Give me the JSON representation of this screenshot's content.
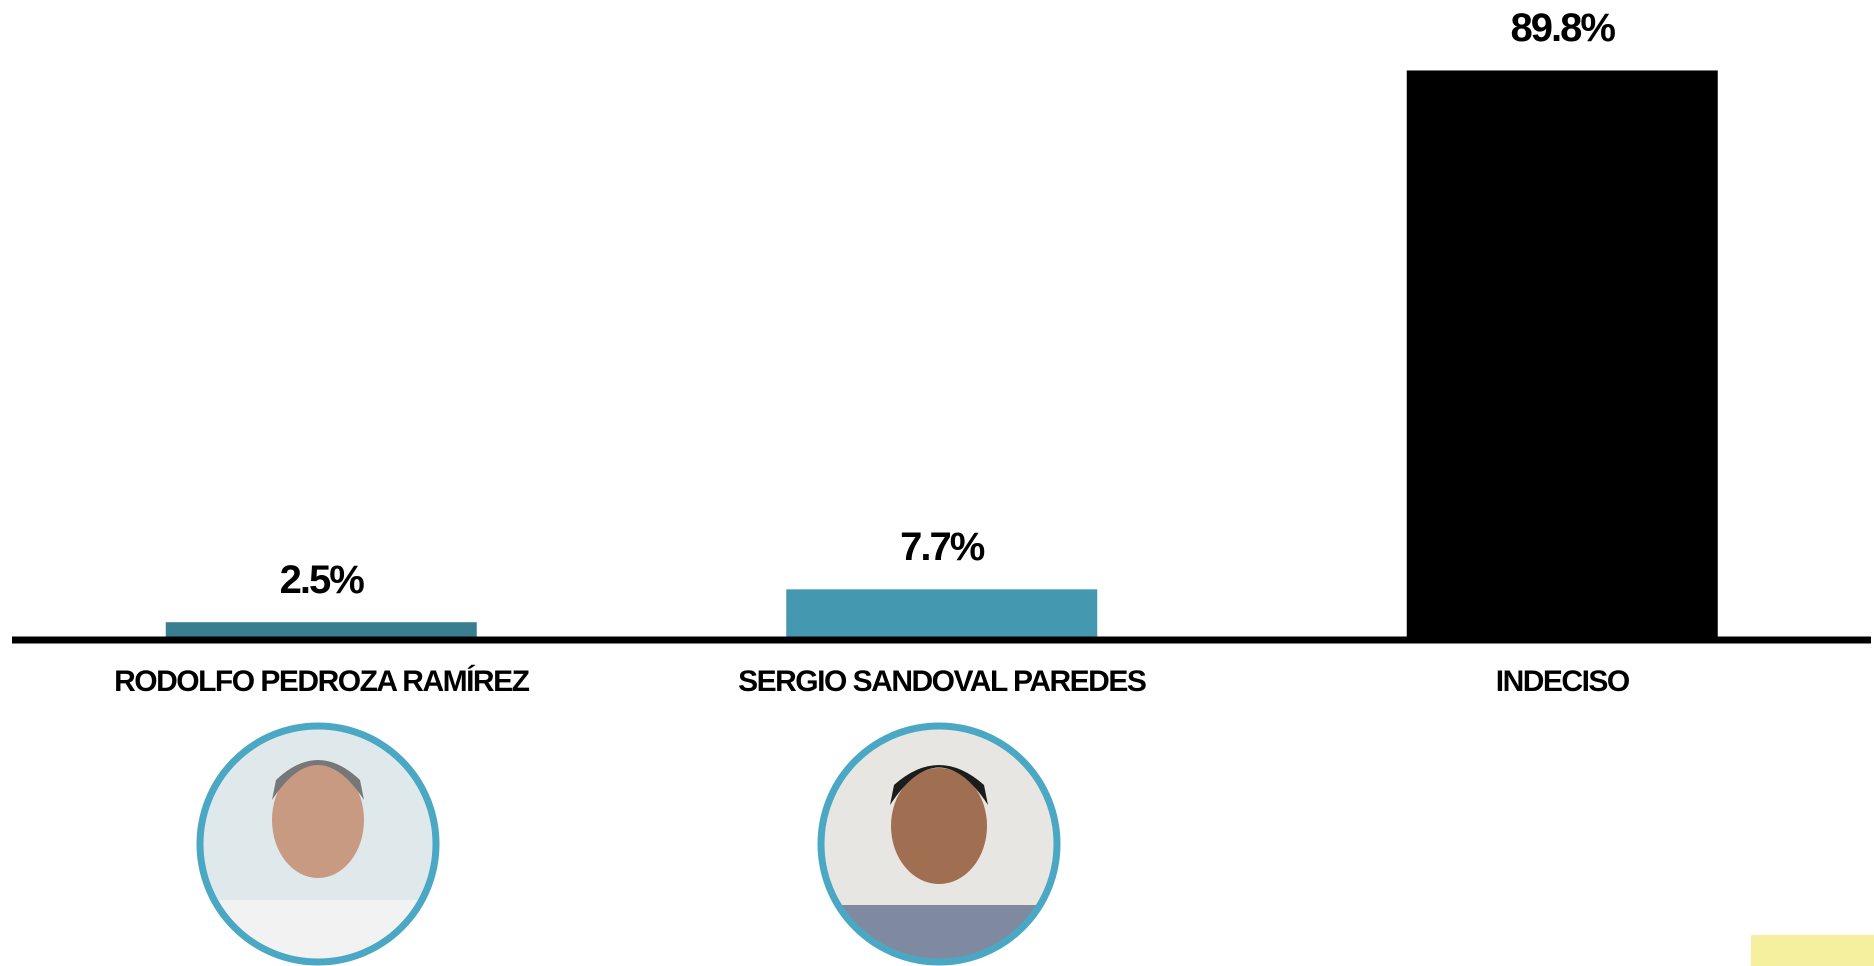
{
  "chart_data": {
    "type": "bar",
    "categories": [
      "RODOLFO PEDROZA RAMÍREZ",
      "SERGIO SANDOVAL PAREDES",
      "INDECISO"
    ],
    "values": [
      2.5,
      7.7,
      89.8
    ],
    "value_labels": [
      "2.5%",
      "7.7%",
      "89.8%"
    ],
    "colors": [
      "#3a7f8f",
      "#4499b1",
      "#000000"
    ],
    "ylim": [
      0,
      100
    ]
  }
}
